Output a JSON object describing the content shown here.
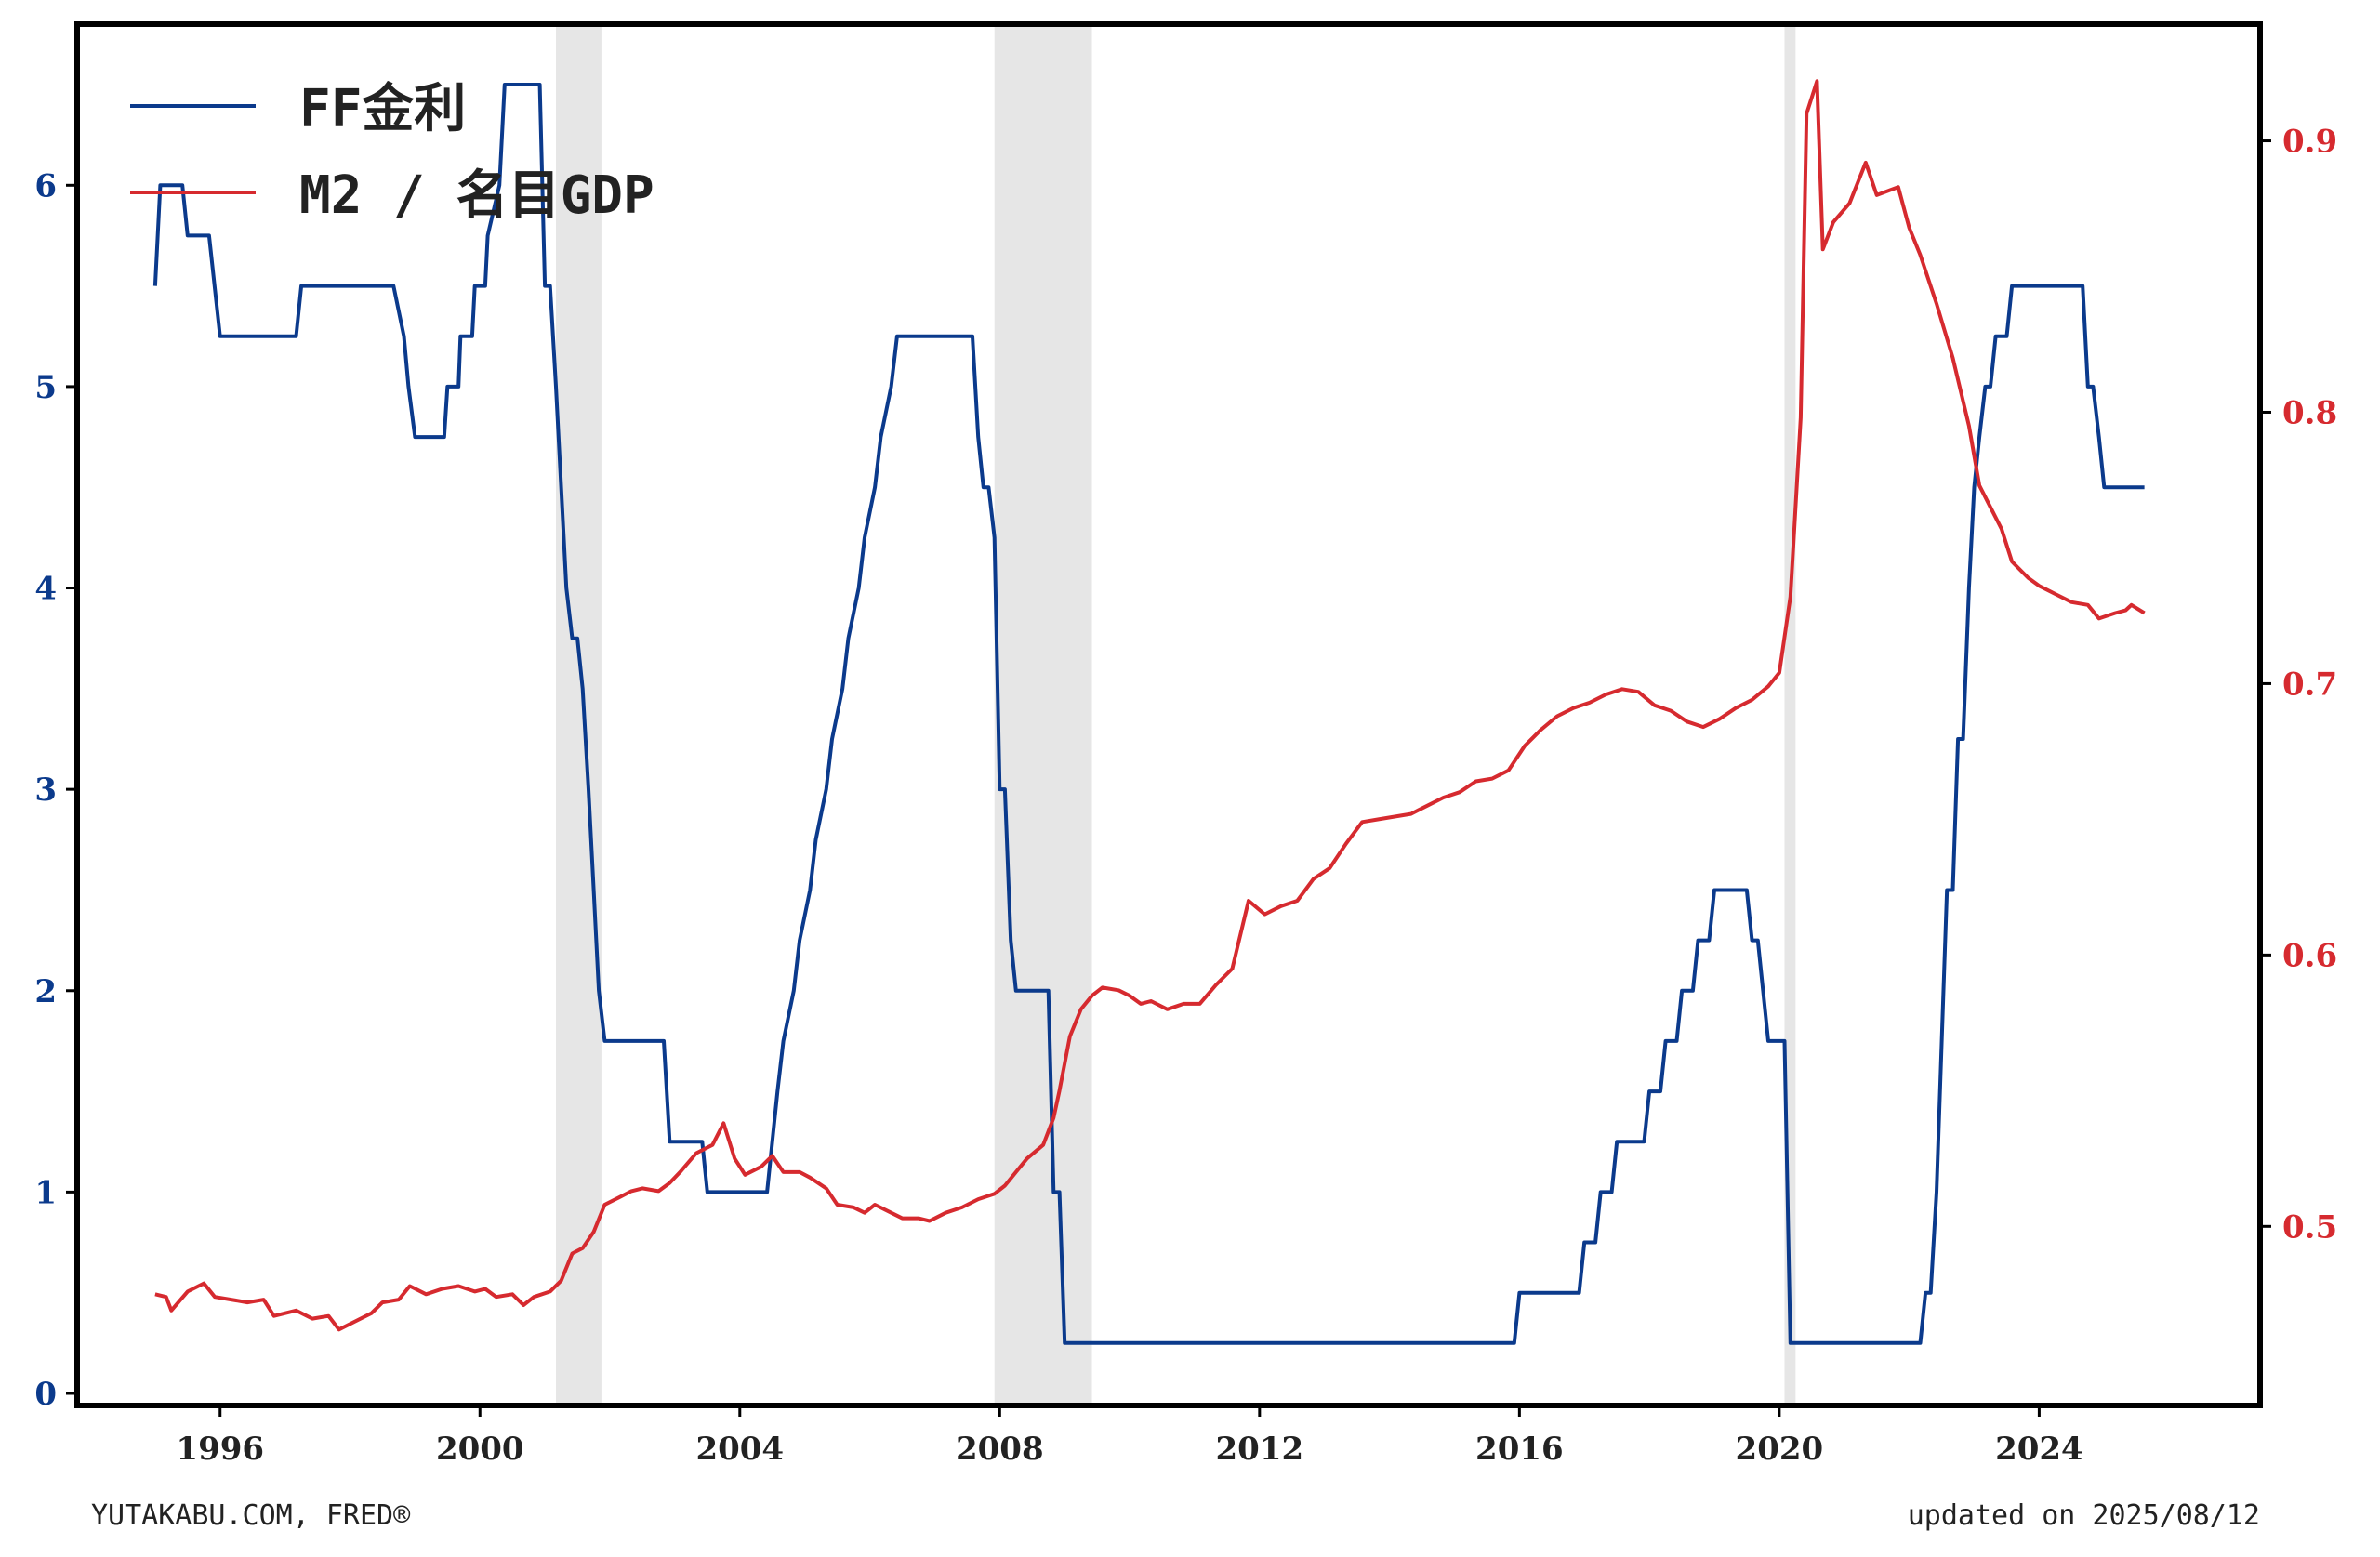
{
  "chart_data": {
    "type": "line",
    "colors": {
      "left": "#0b3a8c",
      "right": "#d62a2f",
      "recession": "#e6e6e6",
      "frame": "#000000"
    },
    "x_ticks": [
      1996,
      2000,
      2004,
      2008,
      2012,
      2016,
      2020,
      2024
    ],
    "x_tick_labels": [
      "1996",
      "2000",
      "2004",
      "2008",
      "2012",
      "2016",
      "2020",
      "2024"
    ],
    "xlim": [
      1993.8,
      2027.4
    ],
    "left_axis": {
      "ylim": [
        -0.06,
        6.8
      ],
      "ticks": [
        0,
        1,
        2,
        3,
        4,
        5,
        6
      ],
      "tick_labels": [
        "0",
        "1",
        "2",
        "3",
        "4",
        "5",
        "6"
      ]
    },
    "right_axis": {
      "ylim": [
        0.434,
        0.943
      ],
      "ticks": [
        0.5,
        0.6,
        0.7,
        0.8,
        0.9
      ],
      "tick_labels": [
        "0.5",
        "0.6",
        "0.7",
        "0.8",
        "0.9"
      ]
    },
    "recessions": [
      [
        2001.17,
        2001.87
      ],
      [
        2007.92,
        2009.42
      ],
      [
        2020.08,
        2020.25
      ]
    ],
    "legend_position": "top-left",
    "series": [
      {
        "name": "FF金利",
        "axis": "left",
        "points": [
          [
            1995.0,
            5.5
          ],
          [
            1995.08,
            6.0
          ],
          [
            1995.42,
            6.0
          ],
          [
            1995.5,
            5.75
          ],
          [
            1995.83,
            5.75
          ],
          [
            1996.0,
            5.25
          ],
          [
            1997.17,
            5.25
          ],
          [
            1997.25,
            5.5
          ],
          [
            1998.67,
            5.5
          ],
          [
            1998.83,
            5.25
          ],
          [
            1998.9,
            5.0
          ],
          [
            1999.0,
            4.75
          ],
          [
            1999.45,
            4.75
          ],
          [
            1999.5,
            5.0
          ],
          [
            1999.67,
            5.0
          ],
          [
            1999.7,
            5.25
          ],
          [
            1999.88,
            5.25
          ],
          [
            1999.92,
            5.5
          ],
          [
            2000.08,
            5.5
          ],
          [
            2000.12,
            5.75
          ],
          [
            2000.3,
            6.0
          ],
          [
            2000.38,
            6.5
          ],
          [
            2000.92,
            6.5
          ],
          [
            2001.0,
            5.5
          ],
          [
            2001.08,
            5.5
          ],
          [
            2001.17,
            5.0
          ],
          [
            2001.25,
            4.5
          ],
          [
            2001.33,
            4.0
          ],
          [
            2001.42,
            3.75
          ],
          [
            2001.5,
            3.75
          ],
          [
            2001.58,
            3.5
          ],
          [
            2001.67,
            3.0
          ],
          [
            2001.75,
            2.5
          ],
          [
            2001.83,
            2.0
          ],
          [
            2001.92,
            1.75
          ],
          [
            2002.83,
            1.75
          ],
          [
            2002.92,
            1.25
          ],
          [
            2003.42,
            1.25
          ],
          [
            2003.5,
            1.0
          ],
          [
            2004.42,
            1.0
          ],
          [
            2004.5,
            1.25
          ],
          [
            2004.58,
            1.5
          ],
          [
            2004.67,
            1.75
          ],
          [
            2004.83,
            2.0
          ],
          [
            2004.92,
            2.25
          ],
          [
            2005.08,
            2.5
          ],
          [
            2005.17,
            2.75
          ],
          [
            2005.33,
            3.0
          ],
          [
            2005.42,
            3.25
          ],
          [
            2005.58,
            3.5
          ],
          [
            2005.67,
            3.75
          ],
          [
            2005.83,
            4.0
          ],
          [
            2005.92,
            4.25
          ],
          [
            2006.08,
            4.5
          ],
          [
            2006.17,
            4.75
          ],
          [
            2006.33,
            5.0
          ],
          [
            2006.42,
            5.25
          ],
          [
            2007.58,
            5.25
          ],
          [
            2007.67,
            4.75
          ],
          [
            2007.75,
            4.5
          ],
          [
            2007.83,
            4.5
          ],
          [
            2007.92,
            4.25
          ],
          [
            2008.0,
            3.0
          ],
          [
            2008.08,
            3.0
          ],
          [
            2008.17,
            2.25
          ],
          [
            2008.25,
            2.0
          ],
          [
            2008.75,
            2.0
          ],
          [
            2008.83,
            1.0
          ],
          [
            2008.92,
            1.0
          ],
          [
            2009.0,
            0.25
          ],
          [
            2015.92,
            0.25
          ],
          [
            2016.0,
            0.5
          ],
          [
            2016.92,
            0.5
          ],
          [
            2017.0,
            0.75
          ],
          [
            2017.17,
            0.75
          ],
          [
            2017.25,
            1.0
          ],
          [
            2017.42,
            1.0
          ],
          [
            2017.5,
            1.25
          ],
          [
            2017.92,
            1.25
          ],
          [
            2018.0,
            1.5
          ],
          [
            2018.17,
            1.5
          ],
          [
            2018.25,
            1.75
          ],
          [
            2018.42,
            1.75
          ],
          [
            2018.5,
            2.0
          ],
          [
            2018.67,
            2.0
          ],
          [
            2018.75,
            2.25
          ],
          [
            2018.92,
            2.25
          ],
          [
            2019.0,
            2.5
          ],
          [
            2019.5,
            2.5
          ],
          [
            2019.58,
            2.25
          ],
          [
            2019.67,
            2.25
          ],
          [
            2019.75,
            2.0
          ],
          [
            2019.83,
            1.75
          ],
          [
            2020.08,
            1.75
          ],
          [
            2020.17,
            0.25
          ],
          [
            2022.17,
            0.25
          ],
          [
            2022.25,
            0.5
          ],
          [
            2022.33,
            0.5
          ],
          [
            2022.42,
            1.0
          ],
          [
            2022.5,
            1.75
          ],
          [
            2022.58,
            2.5
          ],
          [
            2022.67,
            2.5
          ],
          [
            2022.75,
            3.25
          ],
          [
            2022.83,
            3.25
          ],
          [
            2022.92,
            4.0
          ],
          [
            2023.0,
            4.5
          ],
          [
            2023.08,
            4.75
          ],
          [
            2023.17,
            5.0
          ],
          [
            2023.25,
            5.0
          ],
          [
            2023.33,
            5.25
          ],
          [
            2023.5,
            5.25
          ],
          [
            2023.58,
            5.5
          ],
          [
            2024.67,
            5.5
          ],
          [
            2024.75,
            5.0
          ],
          [
            2024.83,
            5.0
          ],
          [
            2024.92,
            4.75
          ],
          [
            2025.0,
            4.5
          ],
          [
            2025.62,
            4.5
          ]
        ]
      },
      {
        "name": "M2 / 名目GDP",
        "axis": "right",
        "points": [
          [
            1995.0,
            0.475
          ],
          [
            1995.17,
            0.474
          ],
          [
            1995.25,
            0.469
          ],
          [
            1995.5,
            0.476
          ],
          [
            1995.75,
            0.479
          ],
          [
            1995.92,
            0.474
          ],
          [
            1996.17,
            0.473
          ],
          [
            1996.42,
            0.472
          ],
          [
            1996.67,
            0.473
          ],
          [
            1996.83,
            0.467
          ],
          [
            1997.17,
            0.469
          ],
          [
            1997.42,
            0.466
          ],
          [
            1997.67,
            0.467
          ],
          [
            1997.83,
            0.462
          ],
          [
            1998.08,
            0.465
          ],
          [
            1998.33,
            0.468
          ],
          [
            1998.5,
            0.472
          ],
          [
            1998.75,
            0.473
          ],
          [
            1998.92,
            0.478
          ],
          [
            1999.17,
            0.475
          ],
          [
            1999.42,
            0.477
          ],
          [
            1999.67,
            0.478
          ],
          [
            1999.92,
            0.476
          ],
          [
            2000.08,
            0.477
          ],
          [
            2000.25,
            0.474
          ],
          [
            2000.5,
            0.475
          ],
          [
            2000.67,
            0.471
          ],
          [
            2000.83,
            0.474
          ],
          [
            2001.08,
            0.476
          ],
          [
            2001.25,
            0.48
          ],
          [
            2001.42,
            0.49
          ],
          [
            2001.58,
            0.492
          ],
          [
            2001.75,
            0.498
          ],
          [
            2001.92,
            0.508
          ],
          [
            2002.17,
            0.511
          ],
          [
            2002.33,
            0.513
          ],
          [
            2002.5,
            0.514
          ],
          [
            2002.75,
            0.513
          ],
          [
            2002.92,
            0.516
          ],
          [
            2003.08,
            0.52
          ],
          [
            2003.33,
            0.527
          ],
          [
            2003.58,
            0.53
          ],
          [
            2003.75,
            0.538
          ],
          [
            2003.92,
            0.525
          ],
          [
            2004.08,
            0.519
          ],
          [
            2004.33,
            0.522
          ],
          [
            2004.5,
            0.526
          ],
          [
            2004.67,
            0.52
          ],
          [
            2004.92,
            0.52
          ],
          [
            2005.08,
            0.518
          ],
          [
            2005.33,
            0.514
          ],
          [
            2005.5,
            0.508
          ],
          [
            2005.75,
            0.507
          ],
          [
            2005.92,
            0.505
          ],
          [
            2006.08,
            0.508
          ],
          [
            2006.33,
            0.505
          ],
          [
            2006.5,
            0.503
          ],
          [
            2006.75,
            0.503
          ],
          [
            2006.92,
            0.502
          ],
          [
            2007.17,
            0.505
          ],
          [
            2007.42,
            0.507
          ],
          [
            2007.67,
            0.51
          ],
          [
            2007.92,
            0.512
          ],
          [
            2008.08,
            0.515
          ],
          [
            2008.25,
            0.52
          ],
          [
            2008.42,
            0.525
          ],
          [
            2008.67,
            0.53
          ],
          [
            2008.83,
            0.54
          ],
          [
            2008.92,
            0.55
          ],
          [
            2009.08,
            0.57
          ],
          [
            2009.25,
            0.58
          ],
          [
            2009.42,
            0.585
          ],
          [
            2009.58,
            0.588
          ],
          [
            2009.83,
            0.587
          ],
          [
            2010.0,
            0.585
          ],
          [
            2010.17,
            0.582
          ],
          [
            2010.33,
            0.583
          ],
          [
            2010.58,
            0.58
          ],
          [
            2010.83,
            0.582
          ],
          [
            2011.08,
            0.582
          ],
          [
            2011.33,
            0.589
          ],
          [
            2011.58,
            0.595
          ],
          [
            2011.83,
            0.62
          ],
          [
            2012.08,
            0.615
          ],
          [
            2012.33,
            0.618
          ],
          [
            2012.58,
            0.62
          ],
          [
            2012.83,
            0.628
          ],
          [
            2013.08,
            0.632
          ],
          [
            2013.33,
            0.641
          ],
          [
            2013.58,
            0.649
          ],
          [
            2013.83,
            0.65
          ],
          [
            2014.08,
            0.651
          ],
          [
            2014.33,
            0.652
          ],
          [
            2014.58,
            0.655
          ],
          [
            2014.83,
            0.658
          ],
          [
            2015.08,
            0.66
          ],
          [
            2015.33,
            0.664
          ],
          [
            2015.58,
            0.665
          ],
          [
            2015.83,
            0.668
          ],
          [
            2016.08,
            0.677
          ],
          [
            2016.33,
            0.683
          ],
          [
            2016.58,
            0.688
          ],
          [
            2016.83,
            0.691
          ],
          [
            2017.08,
            0.693
          ],
          [
            2017.33,
            0.696
          ],
          [
            2017.58,
            0.698
          ],
          [
            2017.83,
            0.697
          ],
          [
            2018.08,
            0.692
          ],
          [
            2018.33,
            0.69
          ],
          [
            2018.58,
            0.686
          ],
          [
            2018.83,
            0.684
          ],
          [
            2019.08,
            0.687
          ],
          [
            2019.33,
            0.691
          ],
          [
            2019.58,
            0.694
          ],
          [
            2019.83,
            0.699
          ],
          [
            2020.0,
            0.704
          ],
          [
            2020.17,
            0.732
          ],
          [
            2020.33,
            0.798
          ],
          [
            2020.42,
            0.91
          ],
          [
            2020.58,
            0.922
          ],
          [
            2020.67,
            0.86
          ],
          [
            2020.83,
            0.87
          ],
          [
            2021.08,
            0.877
          ],
          [
            2021.33,
            0.892
          ],
          [
            2021.5,
            0.88
          ],
          [
            2021.83,
            0.883
          ],
          [
            2022.0,
            0.868
          ],
          [
            2022.17,
            0.858
          ],
          [
            2022.42,
            0.84
          ],
          [
            2022.67,
            0.82
          ],
          [
            2022.92,
            0.795
          ],
          [
            2023.08,
            0.773
          ],
          [
            2023.25,
            0.765
          ],
          [
            2023.42,
            0.757
          ],
          [
            2023.58,
            0.745
          ],
          [
            2023.83,
            0.739
          ],
          [
            2024.0,
            0.736
          ],
          [
            2024.25,
            0.733
          ],
          [
            2024.5,
            0.73
          ],
          [
            2024.75,
            0.729
          ],
          [
            2024.92,
            0.724
          ],
          [
            2025.17,
            0.726
          ],
          [
            2025.33,
            0.727
          ],
          [
            2025.42,
            0.729
          ],
          [
            2025.62,
            0.726
          ]
        ]
      }
    ]
  },
  "footer": {
    "source": "YUTAKABU.COM, FRED®",
    "updated": "updated on 2025/08/12"
  }
}
